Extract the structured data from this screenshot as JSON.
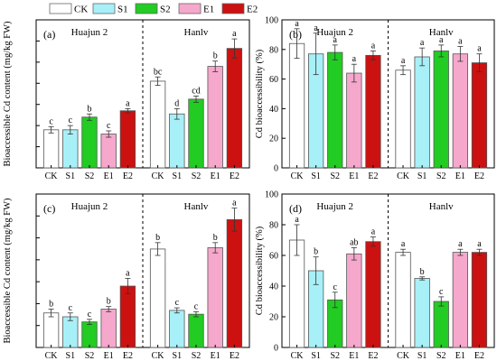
{
  "legend": {
    "items": [
      {
        "label": "CK",
        "color": "#ffffff"
      },
      {
        "label": "S1",
        "color": "#a8f0f8"
      },
      {
        "label": "S2",
        "color": "#22cc22"
      },
      {
        "label": "E1",
        "color": "#f5a8cc"
      },
      {
        "label": "E2",
        "color": "#cc1111"
      }
    ]
  },
  "chart_data": [
    {
      "type": "bar",
      "panel_label": "(a)",
      "ylabel": "Bioaccessible Cd content (mg/kg FW)",
      "ylim": [
        0,
        1.4
      ],
      "ytick_labels": [],
      "groups": [
        "Huajun 2",
        "Hanlv"
      ],
      "categories": [
        "CK",
        "S1",
        "S2",
        "E1",
        "E2"
      ],
      "series": [
        {
          "group": "Huajun 2",
          "values": [
            0.36,
            0.36,
            0.48,
            0.32,
            0.54
          ],
          "errors": [
            0.03,
            0.04,
            0.03,
            0.03,
            0.02
          ],
          "letters": [
            "c",
            "c",
            "b",
            "c",
            "a"
          ]
        },
        {
          "group": "Hanlv",
          "values": [
            0.82,
            0.51,
            0.65,
            0.96,
            1.13
          ],
          "errors": [
            0.04,
            0.05,
            0.03,
            0.05,
            0.09
          ],
          "letters": [
            "bc",
            "d",
            "cd",
            "b",
            "a"
          ]
        }
      ]
    },
    {
      "type": "bar",
      "panel_label": "(b)",
      "ylabel": "Cd bioaccessibility (%)",
      "ylim": [
        0,
        100
      ],
      "ytick_labels": [
        "0",
        "20",
        "40",
        "60",
        "80",
        "100"
      ],
      "groups": [
        "Huajun 2",
        "Hanlv"
      ],
      "categories": [
        "CK",
        "S1",
        "S2",
        "E1",
        "E2"
      ],
      "series": [
        {
          "group": "Huajun 2",
          "values": [
            84,
            77,
            78,
            64,
            76
          ],
          "errors": [
            10,
            14,
            5,
            6,
            3
          ],
          "letters": [
            "a",
            "a",
            "a",
            "a",
            "a"
          ]
        },
        {
          "group": "Hanlv",
          "values": [
            66,
            75,
            79,
            77,
            71
          ],
          "errors": [
            3,
            6,
            4,
            5,
            6
          ],
          "letters": [
            "a",
            "a",
            "a",
            "a",
            "a"
          ]
        }
      ]
    },
    {
      "type": "bar",
      "panel_label": "(c)",
      "ylabel": "Bioaccessible Cd content (mg/kg FW)",
      "ylim": [
        0,
        1.2
      ],
      "ytick_labels": [],
      "groups": [
        "Huajun 2",
        "Hanlv"
      ],
      "categories": [
        "CK",
        "S1",
        "S2",
        "E1",
        "E2"
      ],
      "series": [
        {
          "group": "Huajun 2",
          "values": [
            0.27,
            0.24,
            0.2,
            0.3,
            0.48
          ],
          "errors": [
            0.03,
            0.03,
            0.02,
            0.02,
            0.06
          ],
          "letters": [
            "b",
            "c",
            "c",
            "b",
            "a"
          ]
        },
        {
          "group": "Hanlv",
          "values": [
            0.77,
            0.29,
            0.26,
            0.78,
            1.0
          ],
          "errors": [
            0.05,
            0.02,
            0.02,
            0.04,
            0.09
          ],
          "letters": [
            "b",
            "c",
            "c",
            "b",
            "a"
          ]
        }
      ]
    },
    {
      "type": "bar",
      "panel_label": "(d)",
      "ylabel": "Cd bioaccessibility (%)",
      "ylim": [
        0,
        100
      ],
      "ytick_labels": [
        "0",
        "20",
        "40",
        "60",
        "80",
        "100"
      ],
      "groups": [
        "Huajun 2",
        "Hanlv"
      ],
      "categories": [
        "CK",
        "S1",
        "S2",
        "E1",
        "E2"
      ],
      "series": [
        {
          "group": "Huajun 2",
          "values": [
            70,
            50,
            31,
            61,
            69
          ],
          "errors": [
            10,
            9,
            5,
            4,
            3
          ],
          "letters": [
            "a",
            "b",
            "c",
            "ab",
            "a"
          ]
        },
        {
          "group": "Hanlv",
          "values": [
            62,
            45,
            30,
            62,
            62
          ],
          "errors": [
            2,
            1,
            3,
            2,
            2
          ],
          "letters": [
            "a",
            "b",
            "c",
            "a",
            "a"
          ]
        }
      ]
    }
  ]
}
